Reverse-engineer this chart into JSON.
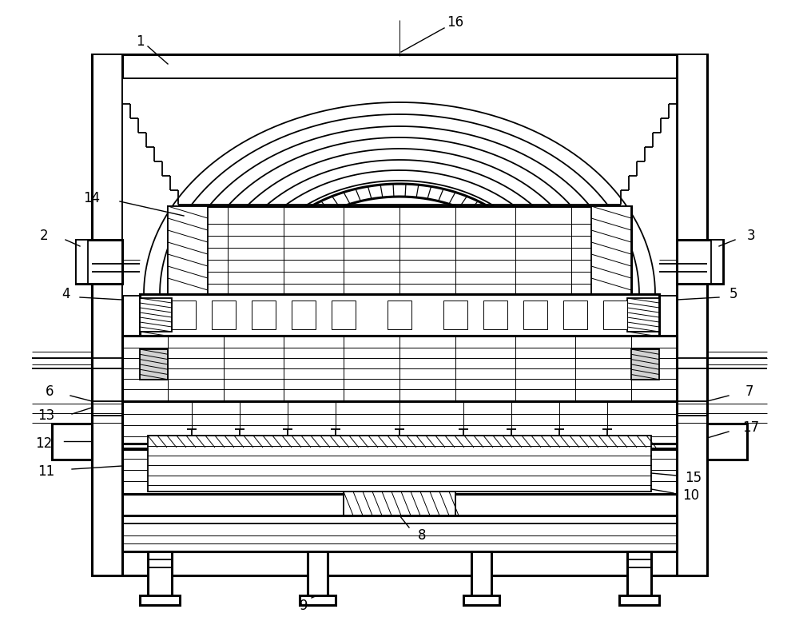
{
  "bg_color": "#ffffff",
  "lc": "#000000",
  "lt": 0.7,
  "lm": 1.3,
  "lk": 2.2,
  "fs": 12
}
